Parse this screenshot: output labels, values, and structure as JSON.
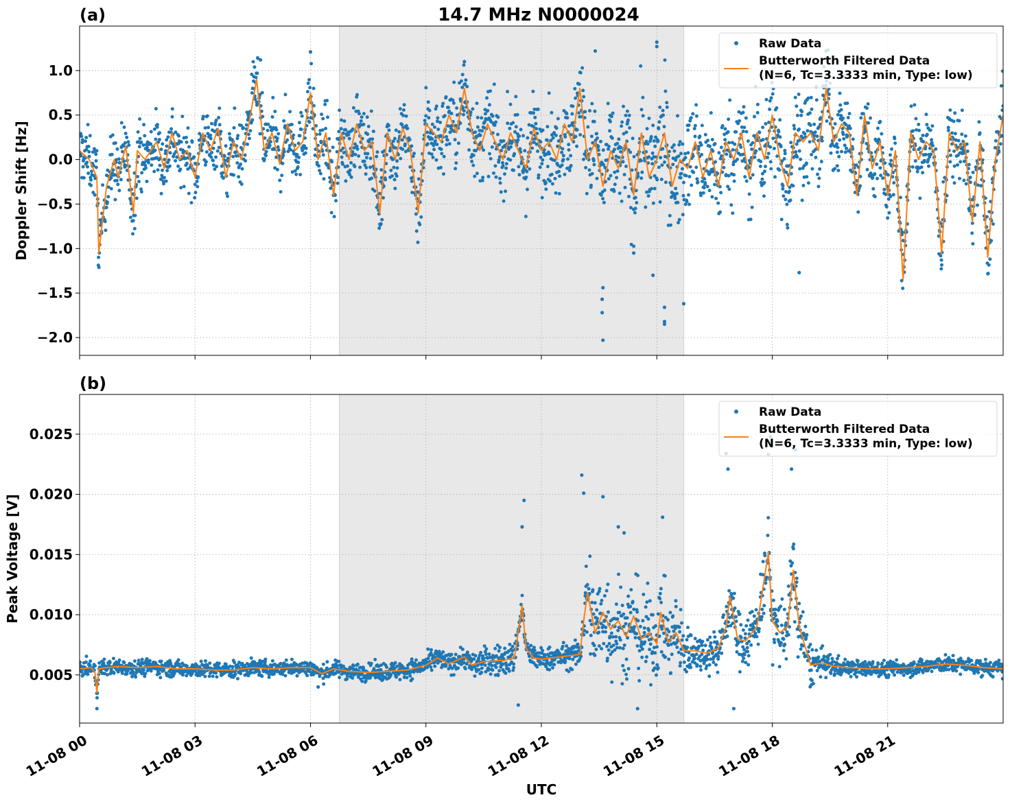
{
  "figure": {
    "title": "14.7 MHz N0000024",
    "xlabel": "UTC",
    "x_tick_labels": [
      "11-08 00",
      "11-08 03",
      "11-08 06",
      "11-08 09",
      "11-08 12",
      "11-08 15",
      "11-08 18",
      "11-08 21"
    ]
  },
  "colors": {
    "raw": "#1f77b4",
    "filtered": "#ff7f0e",
    "shade": "#e8e8e8"
  },
  "chart_data": [
    {
      "type": "scatter",
      "panel": "(a)",
      "title": "14.7 MHz N0000024",
      "xlabel": "",
      "ylabel": "Doppler Shift [Hz]",
      "x_unit": "hours UTC on 11-08",
      "xlim": [
        0,
        24
      ],
      "ylim": [
        -2.2,
        1.5
      ],
      "y_ticks": [
        1.0,
        0.5,
        0.0,
        -0.5,
        -1.0,
        -1.5,
        -2.0
      ],
      "y_tick_labels": [
        "1.0",
        "0.5",
        "0.0",
        "−0.5",
        "−1.0",
        "−1.5",
        "−2.0"
      ],
      "grid": true,
      "legend_position": "top-right",
      "shaded_interval": [
        6.75,
        15.7
      ],
      "series": [
        {
          "name": "Raw Data",
          "kind": "scatter",
          "spread": [
            [
              0,
              0.3
            ],
            [
              0.5,
              0.3
            ],
            [
              1.0,
              0.35
            ],
            [
              2.0,
              0.32
            ],
            [
              3.0,
              0.3
            ],
            [
              4.0,
              0.33
            ],
            [
              5.0,
              0.32
            ],
            [
              6.0,
              0.33
            ],
            [
              6.7,
              0.35
            ],
            [
              8.0,
              0.35
            ],
            [
              9.0,
              0.38
            ],
            [
              10.0,
              0.4
            ],
            [
              11.0,
              0.38
            ],
            [
              12.0,
              0.4
            ],
            [
              13.0,
              0.45
            ],
            [
              14.0,
              0.5
            ],
            [
              15.0,
              0.55
            ],
            [
              16.0,
              0.5
            ],
            [
              17.0,
              0.45
            ],
            [
              18.0,
              0.5
            ],
            [
              19.0,
              0.45
            ],
            [
              20.0,
              0.35
            ],
            [
              21.0,
              0.35
            ],
            [
              22.0,
              0.38
            ],
            [
              23.0,
              0.35
            ],
            [
              24.0,
              0.35
            ]
          ],
          "outliers": [
            [
              13.6,
              -2.03
            ],
            [
              13.58,
              -1.72
            ],
            [
              13.58,
              -1.57
            ],
            [
              13.6,
              -1.44
            ],
            [
              15.2,
              -1.66
            ],
            [
              15.2,
              -1.82
            ],
            [
              15.2,
              -1.85
            ],
            [
              15.7,
              -1.62
            ],
            [
              13.4,
              1.22
            ],
            [
              15.0,
              1.32
            ],
            [
              15.0,
              1.27
            ],
            [
              6.0,
              1.21
            ],
            [
              4.7,
              1.12
            ],
            [
              19.4,
              1.22
            ],
            [
              10.0,
              1.1
            ],
            [
              14.9,
              -1.3
            ],
            [
              18.7,
              -1.27
            ],
            [
              14.4,
              -1.05
            ]
          ]
        },
        {
          "name": "Butterworth Filtered Data\n(N=6, Tc=3.3333 min, Type: low)",
          "kind": "line",
          "x": [
            0.0,
            0.25,
            0.45,
            0.5,
            0.7,
            0.9,
            1.0,
            1.2,
            1.4,
            1.5,
            1.7,
            2.0,
            2.2,
            2.4,
            2.6,
            2.8,
            3.0,
            3.2,
            3.4,
            3.6,
            3.8,
            4.0,
            4.2,
            4.4,
            4.6,
            4.8,
            5.0,
            5.2,
            5.4,
            5.6,
            5.8,
            6.0,
            6.2,
            6.4,
            6.6,
            6.8,
            7.0,
            7.2,
            7.4,
            7.6,
            7.8,
            8.0,
            8.2,
            8.4,
            8.6,
            8.8,
            9.0,
            9.2,
            9.4,
            9.6,
            9.8,
            10.0,
            10.2,
            10.4,
            10.6,
            10.8,
            11.0,
            11.2,
            11.4,
            11.6,
            11.8,
            12.0,
            12.2,
            12.4,
            12.6,
            12.8,
            13.0,
            13.2,
            13.4,
            13.6,
            13.8,
            14.0,
            14.2,
            14.4,
            14.6,
            14.8,
            15.0,
            15.2,
            15.4,
            15.6,
            15.8,
            16.0,
            16.2,
            16.4,
            16.6,
            16.8,
            17.0,
            17.2,
            17.4,
            17.6,
            17.8,
            18.0,
            18.2,
            18.4,
            18.6,
            18.8,
            19.0,
            19.2,
            19.4,
            19.6,
            19.8,
            20.0,
            20.2,
            20.4,
            20.6,
            20.8,
            21.0,
            21.2,
            21.4,
            21.6,
            21.8,
            22.0,
            22.2,
            22.4,
            22.6,
            22.8,
            23.0,
            23.2,
            23.4,
            23.6,
            23.8,
            24.0
          ],
          "y": [
            0.1,
            0.0,
            -0.2,
            -1.05,
            -0.3,
            0.0,
            -0.2,
            0.15,
            -0.6,
            0.1,
            0.0,
            0.2,
            -0.1,
            0.3,
            0.0,
            0.1,
            -0.2,
            0.3,
            0.1,
            0.35,
            -0.2,
            0.2,
            0.0,
            0.4,
            0.9,
            0.1,
            0.3,
            -0.05,
            0.4,
            0.1,
            0.2,
            0.75,
            0.0,
            0.3,
            -0.4,
            0.3,
            0.0,
            0.4,
            0.1,
            0.2,
            -0.6,
            0.3,
            0.0,
            0.35,
            0.1,
            -0.6,
            0.4,
            0.3,
            0.2,
            0.5,
            0.3,
            0.8,
            0.3,
            0.1,
            0.4,
            0.2,
            0.0,
            0.3,
            0.1,
            -0.1,
            0.35,
            0.1,
            0.2,
            0.0,
            0.4,
            0.2,
            0.8,
            0.0,
            0.2,
            -0.3,
            0.1,
            -0.1,
            0.2,
            -0.4,
            0.3,
            -0.2,
            0.0,
            0.3,
            -0.3,
            0.0,
            -0.1,
            0.2,
            -0.2,
            0.1,
            -0.3,
            0.2,
            0.0,
            0.3,
            -0.2,
            0.3,
            0.0,
            0.5,
            0.0,
            -0.3,
            0.3,
            0.2,
            0.3,
            0.1,
            0.8,
            0.2,
            0.4,
            0.3,
            -0.4,
            0.5,
            -0.1,
            0.2,
            -0.4,
            0.1,
            -1.35,
            0.3,
            0.0,
            0.2,
            0.1,
            -1.05,
            0.3,
            0.1,
            0.2,
            -0.7,
            0.2,
            -1.1,
            0.0,
            0.5
          ]
        }
      ]
    },
    {
      "type": "scatter",
      "panel": "(b)",
      "title": "",
      "xlabel": "UTC",
      "ylabel": "Peak Voltage [V]",
      "x_unit": "hours UTC on 11-08",
      "xlim": [
        0,
        24
      ],
      "ylim": [
        0.001,
        0.0283
      ],
      "y_ticks": [
        0.025,
        0.02,
        0.015,
        0.01,
        0.005
      ],
      "y_tick_labels": [
        "0.025",
        "0.020",
        "0.015",
        "0.010",
        "0.005"
      ],
      "grid": true,
      "legend_position": "top-right",
      "shaded_interval": [
        6.75,
        15.7
      ],
      "series": [
        {
          "name": "Raw Data",
          "kind": "scatter",
          "spread": [
            [
              0,
              0.0006
            ],
            [
              2.0,
              0.0006
            ],
            [
              4.0,
              0.0006
            ],
            [
              6.0,
              0.0006
            ],
            [
              7.0,
              0.0006
            ],
            [
              8.5,
              0.0007
            ],
            [
              10.0,
              0.0008
            ],
            [
              11.0,
              0.0012
            ],
            [
              12.0,
              0.0008
            ],
            [
              13.0,
              0.001
            ],
            [
              13.2,
              0.004
            ],
            [
              14.0,
              0.0035
            ],
            [
              15.0,
              0.003
            ],
            [
              15.7,
              0.0025
            ],
            [
              16.0,
              0.0012
            ],
            [
              17.0,
              0.002
            ],
            [
              18.0,
              0.0025
            ],
            [
              18.6,
              0.003
            ],
            [
              19.2,
              0.001
            ],
            [
              20.0,
              0.0006
            ],
            [
              22.0,
              0.0006
            ],
            [
              24.0,
              0.0006
            ]
          ],
          "outliers": [
            [
              11.55,
              0.0195
            ],
            [
              11.5,
              0.0173
            ],
            [
              13.05,
              0.0216
            ],
            [
              13.6,
              0.0198
            ],
            [
              13.1,
              0.0201
            ],
            [
              14.0,
              0.0173
            ],
            [
              14.15,
              0.0168
            ],
            [
              15.15,
              0.0181
            ],
            [
              16.8,
              0.0234
            ],
            [
              16.85,
              0.0221
            ],
            [
              17.95,
              0.0248
            ],
            [
              17.9,
              0.0233
            ],
            [
              18.6,
              0.0237
            ],
            [
              18.5,
              0.0221
            ],
            [
              17.0,
              0.0022
            ],
            [
              11.4,
              0.0025
            ],
            [
              14.5,
              0.0022
            ],
            [
              0.45,
              0.0022
            ],
            [
              6.2,
              0.004
            ]
          ]
        },
        {
          "name": "Butterworth Filtered Data\n(N=6, Tc=3.3333 min, Type: low)",
          "kind": "line",
          "x": [
            0.0,
            0.3,
            0.4,
            0.45,
            0.5,
            0.7,
            1.0,
            1.5,
            2.0,
            2.5,
            3.0,
            3.5,
            4.0,
            4.5,
            5.0,
            5.5,
            6.0,
            6.3,
            6.6,
            7.0,
            7.5,
            8.0,
            8.5,
            9.0,
            9.3,
            9.6,
            10.0,
            10.2,
            10.5,
            11.0,
            11.3,
            11.5,
            11.6,
            11.8,
            12.0,
            12.5,
            13.0,
            13.1,
            13.2,
            13.4,
            13.6,
            13.8,
            14.0,
            14.2,
            14.4,
            14.6,
            14.8,
            15.0,
            15.1,
            15.3,
            15.5,
            15.7,
            16.0,
            16.3,
            16.6,
            16.8,
            16.9,
            17.1,
            17.3,
            17.6,
            17.9,
            18.0,
            18.2,
            18.4,
            18.55,
            18.7,
            19.0,
            19.3,
            19.6,
            20.0,
            20.5,
            21.0,
            21.5,
            22.0,
            22.5,
            23.0,
            23.5,
            24.0
          ],
          "y": [
            0.0055,
            0.0056,
            0.0052,
            0.0035,
            0.0055,
            0.0056,
            0.0057,
            0.0056,
            0.0057,
            0.0055,
            0.0055,
            0.0054,
            0.0054,
            0.0056,
            0.0055,
            0.0056,
            0.0056,
            0.0051,
            0.0055,
            0.0053,
            0.0052,
            0.0053,
            0.0054,
            0.0058,
            0.0064,
            0.0059,
            0.0065,
            0.0058,
            0.0061,
            0.0062,
            0.0064,
            0.0108,
            0.0072,
            0.0064,
            0.0063,
            0.0065,
            0.0067,
            0.0095,
            0.0118,
            0.0085,
            0.0102,
            0.0088,
            0.0095,
            0.0082,
            0.0099,
            0.008,
            0.0085,
            0.0076,
            0.0102,
            0.0077,
            0.0085,
            0.007,
            0.007,
            0.0068,
            0.0072,
            0.009,
            0.0115,
            0.008,
            0.0078,
            0.009,
            0.0152,
            0.0095,
            0.0085,
            0.009,
            0.0137,
            0.009,
            0.0058,
            0.006,
            0.0057,
            0.0056,
            0.0055,
            0.0055,
            0.0056,
            0.0057,
            0.0059,
            0.0058,
            0.0056,
            0.0055
          ]
        }
      ]
    }
  ]
}
